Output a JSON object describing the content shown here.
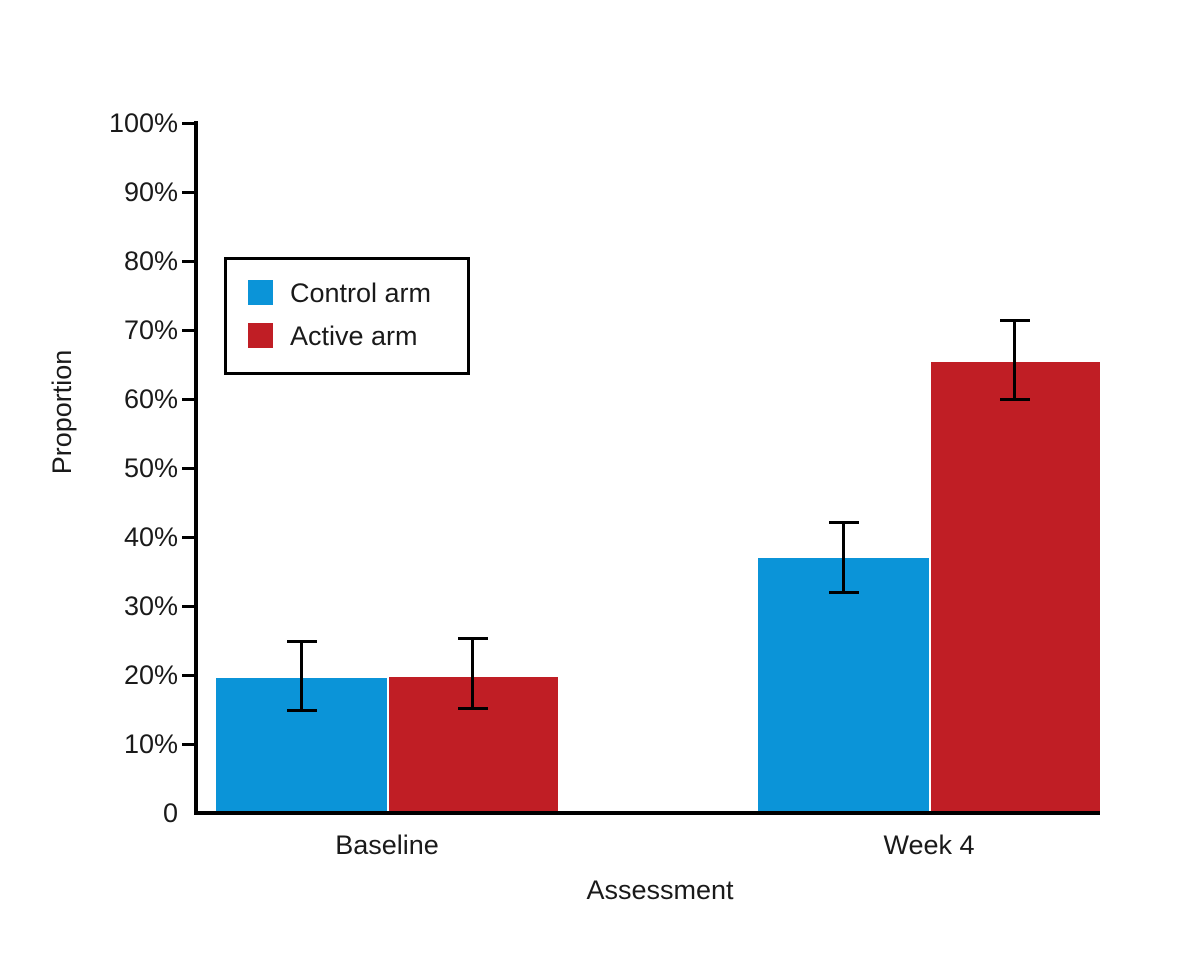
{
  "accent_colors": {
    "control_blue": "#0b94d8",
    "active_red": "#c01e25",
    "axis_black": "#000000",
    "background": "#ffffff"
  },
  "chart_data": {
    "type": "bar",
    "title": "",
    "xlabel": "Assessment",
    "ylabel": "Proportion",
    "categories": [
      "Baseline",
      "Week 4"
    ],
    "y_ticks": [
      "0",
      "10%",
      "20%",
      "30%",
      "40%",
      "50%",
      "60%",
      "70%",
      "80%",
      "90%",
      "100%"
    ],
    "ylim": [
      0,
      100
    ],
    "grid": false,
    "legend_position": "upper-left-inside",
    "error_bars": true,
    "series": [
      {
        "name": "Control arm",
        "color": "#0b94d8",
        "values": [
          19.5,
          37.0
        ],
        "err_low": [
          14.8,
          31.9
        ],
        "err_high": [
          24.9,
          42.1
        ]
      },
      {
        "name": "Active arm",
        "color": "#c01e25",
        "values": [
          19.7,
          65.4
        ],
        "err_low": [
          15.1,
          59.9
        ],
        "err_high": [
          25.3,
          71.4
        ]
      }
    ]
  }
}
